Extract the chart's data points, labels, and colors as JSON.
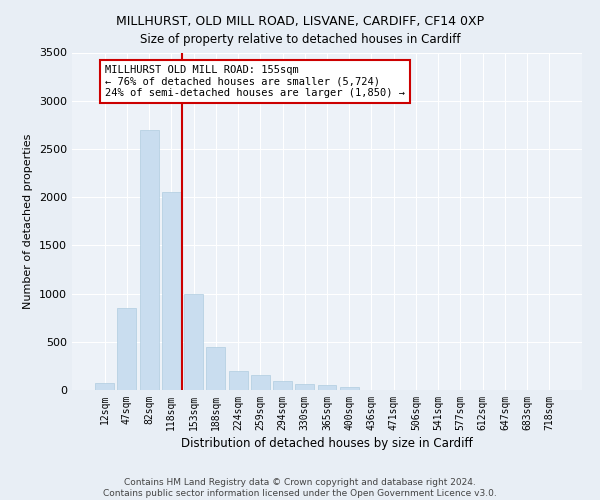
{
  "title1": "MILLHURST, OLD MILL ROAD, LISVANE, CARDIFF, CF14 0XP",
  "title2": "Size of property relative to detached houses in Cardiff",
  "xlabel": "Distribution of detached houses by size in Cardiff",
  "ylabel": "Number of detached properties",
  "bar_labels": [
    "12sqm",
    "47sqm",
    "82sqm",
    "118sqm",
    "153sqm",
    "188sqm",
    "224sqm",
    "259sqm",
    "294sqm",
    "330sqm",
    "365sqm",
    "400sqm",
    "436sqm",
    "471sqm",
    "506sqm",
    "541sqm",
    "577sqm",
    "612sqm",
    "647sqm",
    "683sqm",
    "718sqm"
  ],
  "bar_values": [
    75,
    850,
    2700,
    2050,
    1000,
    450,
    200,
    155,
    90,
    60,
    55,
    30,
    0,
    0,
    0,
    0,
    0,
    0,
    0,
    0,
    0
  ],
  "bar_color": "#c9ddef",
  "bar_edge_color": "#b0cce0",
  "vline_x": 3.5,
  "vline_color": "#cc0000",
  "annotation_text": "MILLHURST OLD MILL ROAD: 155sqm\n← 76% of detached houses are smaller (5,724)\n24% of semi-detached houses are larger (1,850) →",
  "annotation_box_color": "#ffffff",
  "annotation_box_edge_color": "#cc0000",
  "ylim": [
    0,
    3500
  ],
  "yticks": [
    0,
    500,
    1000,
    1500,
    2000,
    2500,
    3000,
    3500
  ],
  "footer": "Contains HM Land Registry data © Crown copyright and database right 2024.\nContains public sector information licensed under the Open Government Licence v3.0.",
  "bg_color": "#e8eef5",
  "plot_bg_color": "#edf2f8"
}
